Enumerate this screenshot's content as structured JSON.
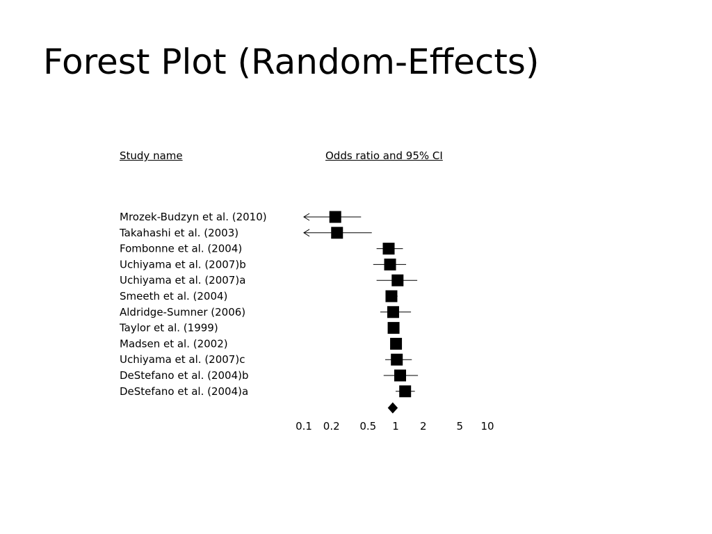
{
  "title": "Forest Plot (Random-Effects)",
  "headers": {
    "study": "Study name",
    "or": "Odds ratio and 95% CI"
  },
  "chart_data": {
    "type": "forest",
    "x_scale": "log",
    "xlim": [
      0.1,
      10
    ],
    "x_ticks": [
      0.1,
      0.2,
      0.5,
      1,
      2,
      5,
      10
    ],
    "x_tick_labels": [
      "0.1",
      "0.2",
      "0.5",
      "1",
      "2",
      "5",
      "10"
    ],
    "studies": [
      {
        "name": "Mrozek-Budzyn et al. (2010)",
        "or": 0.22,
        "lower": 0.09,
        "upper": 0.42,
        "truncated_lower": true
      },
      {
        "name": "Takahashi et al. (2003)",
        "or": 0.23,
        "lower": 0.09,
        "upper": 0.55,
        "truncated_lower": true
      },
      {
        "name": "Fombonne et al. (2004)",
        "or": 0.84,
        "lower": 0.62,
        "upper": 1.2,
        "truncated_lower": false
      },
      {
        "name": "Uchiyama et al. (2007)b",
        "or": 0.87,
        "lower": 0.57,
        "upper": 1.3,
        "truncated_lower": false
      },
      {
        "name": "Uchiyama et al. (2007)a",
        "or": 1.05,
        "lower": 0.62,
        "upper": 1.72,
        "truncated_lower": false
      },
      {
        "name": "Smeeth et al. (2004)",
        "or": 0.9,
        "lower": 0.8,
        "upper": 1.05,
        "truncated_lower": false
      },
      {
        "name": "Aldridge-Sumner (2006)",
        "or": 0.94,
        "lower": 0.68,
        "upper": 1.47,
        "truncated_lower": false
      },
      {
        "name": "Taylor et al. (1999)",
        "or": 0.95,
        "lower": 0.87,
        "upper": 1.1,
        "truncated_lower": false
      },
      {
        "name": "Madsen et al. (2002)",
        "or": 1.01,
        "lower": 0.9,
        "upper": 1.13,
        "truncated_lower": false
      },
      {
        "name": "Uchiyama et al. (2007)c",
        "or": 1.03,
        "lower": 0.77,
        "upper": 1.5,
        "truncated_lower": false
      },
      {
        "name": "DeStefano et al. (2004)b",
        "or": 1.12,
        "lower": 0.74,
        "upper": 1.75,
        "truncated_lower": false
      },
      {
        "name": "DeStefano et al. (2004)a",
        "or": 1.27,
        "lower": 1.0,
        "upper": 1.62,
        "truncated_lower": false
      }
    ],
    "summary": {
      "or": 0.93,
      "lower": 0.85,
      "upper": 1.02
    }
  }
}
